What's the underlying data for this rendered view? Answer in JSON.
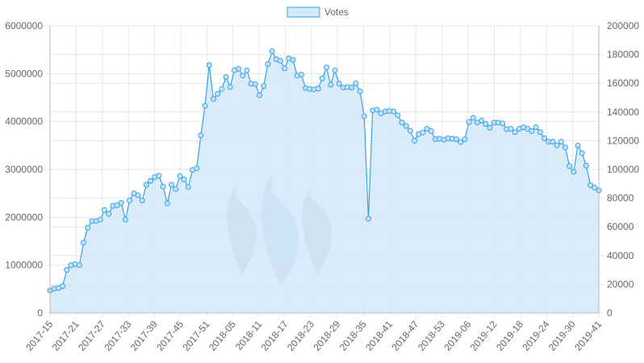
{
  "chart_data": {
    "type": "line",
    "title": "",
    "xlabel": "",
    "ylabel": "",
    "legend": {
      "position": "top",
      "entries": [
        "Votes"
      ]
    },
    "grid": true,
    "y_left": {
      "min": 0,
      "max": 6000000,
      "step": 1000000,
      "ticks": [
        "0",
        "1000000",
        "2000000",
        "3000000",
        "4000000",
        "5000000",
        "6000000"
      ]
    },
    "y_right": {
      "min": 0,
      "max": 200000,
      "step": 20000,
      "ticks": [
        "0",
        "20000",
        "40000",
        "60000",
        "80000",
        "100000",
        "120000",
        "140000",
        "160000",
        "180000",
        "200000"
      ]
    },
    "x_tick_labels": [
      "2017-15",
      "2017-21",
      "2017-27",
      "2017-33",
      "2017-39",
      "2017-45",
      "2017-51",
      "2018-05",
      "2018-11",
      "2018-17",
      "2018-23",
      "2018-29",
      "2018-35",
      "2018-41",
      "2018-47",
      "2018-53",
      "2019-06",
      "2019-12",
      "2019-18",
      "2019-24",
      "2019-30",
      "2019-41"
    ],
    "series": [
      {
        "name": "Votes",
        "axis": "left",
        "color": "#36a2eb",
        "fill": "#d3e9f8",
        "values": [
          470000,
          510000,
          520000,
          560000,
          900000,
          1000000,
          1020000,
          1000000,
          1470000,
          1780000,
          1920000,
          1920000,
          1950000,
          2150000,
          2070000,
          2240000,
          2250000,
          2300000,
          1950000,
          2350000,
          2500000,
          2460000,
          2350000,
          2680000,
          2760000,
          2840000,
          2870000,
          2640000,
          2290000,
          2680000,
          2590000,
          2860000,
          2790000,
          2630000,
          2990000,
          3020000,
          3710000,
          4330000,
          5180000,
          4470000,
          4580000,
          4680000,
          4930000,
          4720000,
          5070000,
          5100000,
          4960000,
          5070000,
          4790000,
          4780000,
          4550000,
          4740000,
          5200000,
          5470000,
          5300000,
          5270000,
          5110000,
          5320000,
          5290000,
          4960000,
          4980000,
          4700000,
          4680000,
          4670000,
          4690000,
          4900000,
          5130000,
          4770000,
          5070000,
          4790000,
          4710000,
          4720000,
          4710000,
          4800000,
          4630000,
          4110000,
          1970000,
          4230000,
          4250000,
          4170000,
          4210000,
          4220000,
          4210000,
          4130000,
          3980000,
          3910000,
          3810000,
          3600000,
          3740000,
          3770000,
          3850000,
          3800000,
          3630000,
          3640000,
          3620000,
          3650000,
          3640000,
          3630000,
          3570000,
          3630000,
          3990000,
          4080000,
          3980000,
          4020000,
          3950000,
          3870000,
          3980000,
          3980000,
          3960000,
          3840000,
          3850000,
          3780000,
          3850000,
          3880000,
          3850000,
          3800000,
          3880000,
          3780000,
          3650000,
          3580000,
          3580000,
          3500000,
          3580000,
          3460000,
          3070000,
          2950000,
          3500000,
          3340000,
          3080000,
          2670000,
          2620000,
          2560000
        ]
      }
    ]
  }
}
